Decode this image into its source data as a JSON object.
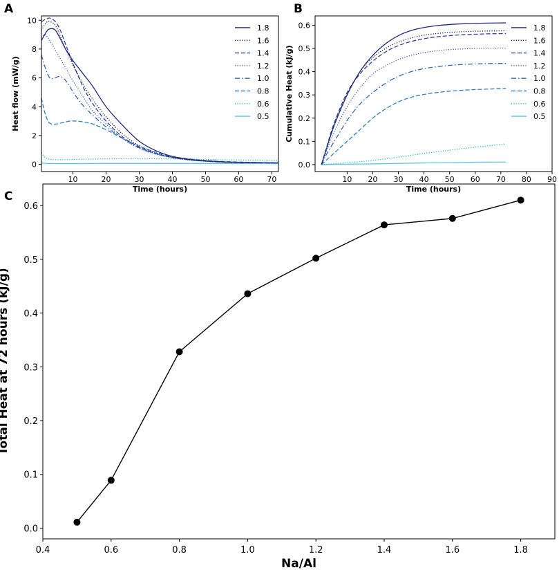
{
  "panel_labels": {
    "a": "A",
    "b": "B",
    "c": "C"
  },
  "chart_data": [
    {
      "panel": "A",
      "type": "line",
      "xlabel": "Time (hours)",
      "ylabel": "Heat flow (mW/g)",
      "xlim": [
        0.5,
        72
      ],
      "ylim": [
        -0.5,
        10.3
      ],
      "xticks": [
        10,
        20,
        30,
        40,
        50,
        60,
        70
      ],
      "yticks": [
        0,
        2,
        4,
        6,
        8,
        10
      ],
      "legend_position": "top-right",
      "series": [
        {
          "name": "1.8",
          "color": "#1f2a7a",
          "dash": "solid",
          "x": [
            0.5,
            2,
            3,
            4.5,
            6,
            8,
            10,
            13,
            16,
            20,
            25,
            30,
            35,
            40,
            45,
            50,
            55,
            60,
            65,
            72
          ],
          "y": [
            8.6,
            9.2,
            9.4,
            9.35,
            8.8,
            7.9,
            7.2,
            6.3,
            5.4,
            4.0,
            2.7,
            1.6,
            0.95,
            0.55,
            0.35,
            0.25,
            0.18,
            0.14,
            0.12,
            0.1
          ]
        },
        {
          "name": "1.6",
          "color": "#141a3f",
          "dash": "dotted",
          "x": [
            0.5,
            2,
            3,
            4.5,
            6,
            8,
            10,
            13,
            16,
            20,
            25,
            30,
            35,
            40,
            45,
            50,
            55,
            60,
            65,
            72
          ],
          "y": [
            9.3,
            9.85,
            9.9,
            9.7,
            9.0,
            7.9,
            6.9,
            5.6,
            4.5,
            3.3,
            2.1,
            1.3,
            0.8,
            0.5,
            0.32,
            0.22,
            0.16,
            0.13,
            0.11,
            0.1
          ]
        },
        {
          "name": "1.4",
          "color": "#2e3f9e",
          "dash": "dashed",
          "x": [
            0.5,
            2,
            3,
            4.5,
            6,
            8,
            10,
            13,
            16,
            20,
            25,
            30,
            35,
            40,
            45,
            50,
            55,
            60,
            65,
            72
          ],
          "y": [
            9.9,
            10.1,
            10.15,
            9.95,
            9.4,
            8.2,
            7.0,
            5.4,
            4.2,
            3.0,
            1.9,
            1.2,
            0.75,
            0.48,
            0.32,
            0.22,
            0.16,
            0.13,
            0.11,
            0.1
          ]
        },
        {
          "name": "1.2",
          "color": "#3a55b5",
          "dash": "dotted",
          "x": [
            0.5,
            1.5,
            3,
            4.5,
            6,
            8,
            10,
            13,
            16,
            20,
            25,
            30,
            35,
            40,
            45,
            50,
            55,
            60,
            65,
            72
          ],
          "y": [
            8.8,
            9.0,
            8.6,
            8.0,
            7.4,
            6.6,
            5.8,
            4.7,
            3.7,
            2.8,
            1.8,
            1.1,
            0.7,
            0.45,
            0.3,
            0.22,
            0.16,
            0.13,
            0.11,
            0.1
          ]
        },
        {
          "name": "1.0",
          "color": "#3068b0",
          "dash": "dashdot",
          "x": [
            0.5,
            1.5,
            3,
            4.5,
            6,
            7.5,
            9,
            11,
            13,
            16,
            20,
            25,
            30,
            35,
            40,
            45,
            50,
            55,
            60,
            65,
            72
          ],
          "y": [
            7.6,
            6.8,
            6.0,
            6.0,
            6.1,
            5.9,
            5.4,
            4.7,
            4.1,
            3.4,
            2.6,
            1.8,
            1.15,
            0.75,
            0.48,
            0.32,
            0.23,
            0.17,
            0.14,
            0.12,
            0.1
          ]
        },
        {
          "name": "0.8",
          "color": "#2b80c0",
          "dash": "dashed",
          "x": [
            0.5,
            1.5,
            2.5,
            3.5,
            5,
            7,
            9,
            11,
            13,
            16,
            20,
            25,
            30,
            35,
            40,
            45,
            50,
            55,
            60,
            65,
            72
          ],
          "y": [
            4.6,
            3.6,
            3.0,
            2.8,
            2.8,
            2.9,
            3.0,
            3.0,
            2.95,
            2.8,
            2.4,
            1.8,
            1.25,
            0.85,
            0.55,
            0.38,
            0.27,
            0.2,
            0.16,
            0.13,
            0.1
          ]
        },
        {
          "name": "0.6",
          "color": "#1fb3d8",
          "dash": "dotted",
          "x": [
            0.5,
            1.5,
            3,
            5,
            8,
            12,
            20,
            30,
            40,
            50,
            60,
            72
          ],
          "y": [
            0.8,
            0.5,
            0.35,
            0.32,
            0.33,
            0.35,
            0.38,
            0.4,
            0.38,
            0.34,
            0.3,
            0.26
          ]
        },
        {
          "name": "0.5",
          "color": "#5cc3e6",
          "dash": "solid",
          "x": [
            0.5,
            2,
            5,
            10,
            20,
            30,
            40,
            50,
            60,
            72
          ],
          "y": [
            0.1,
            0.06,
            0.05,
            0.05,
            0.06,
            0.06,
            0.06,
            0.06,
            0.06,
            0.05
          ]
        }
      ]
    },
    {
      "panel": "B",
      "type": "line",
      "xlabel": "Time (hours)",
      "ylabel": "Cumulative Heat (kJ/g)",
      "xlim": [
        -2.5,
        90
      ],
      "ylim": [
        -0.03,
        0.64
      ],
      "xticks": [
        10,
        20,
        30,
        40,
        50,
        60,
        70,
        80,
        90
      ],
      "yticks": [
        0.0,
        0.1,
        0.2,
        0.3,
        0.4,
        0.5,
        0.6
      ],
      "legend_position": "right",
      "series": [
        {
          "name": "1.8",
          "color": "#1f2a7a",
          "dash": "solid",
          "x": [
            0,
            2,
            5,
            10,
            15,
            20,
            25,
            30,
            35,
            40,
            45,
            50,
            55,
            60,
            65,
            72
          ],
          "y": [
            0.0,
            0.07,
            0.17,
            0.3,
            0.4,
            0.47,
            0.52,
            0.555,
            0.577,
            0.59,
            0.598,
            0.603,
            0.606,
            0.608,
            0.609,
            0.61
          ]
        },
        {
          "name": "1.6",
          "color": "#141a3f",
          "dash": "dotted",
          "x": [
            0,
            2,
            5,
            10,
            15,
            20,
            25,
            30,
            35,
            40,
            45,
            50,
            55,
            60,
            65,
            72
          ],
          "y": [
            0.0,
            0.07,
            0.17,
            0.3,
            0.4,
            0.46,
            0.5,
            0.527,
            0.545,
            0.557,
            0.564,
            0.569,
            0.572,
            0.574,
            0.575,
            0.576
          ]
        },
        {
          "name": "1.4",
          "color": "#2e3f9e",
          "dash": "dashed",
          "x": [
            0,
            2,
            5,
            10,
            15,
            20,
            25,
            30,
            35,
            40,
            45,
            50,
            55,
            60,
            65,
            72
          ],
          "y": [
            0.0,
            0.075,
            0.18,
            0.31,
            0.39,
            0.445,
            0.485,
            0.512,
            0.53,
            0.542,
            0.55,
            0.555,
            0.559,
            0.561,
            0.563,
            0.564
          ]
        },
        {
          "name": "1.2",
          "color": "#3a55b5",
          "dash": "dotted",
          "x": [
            0,
            2,
            5,
            10,
            15,
            20,
            25,
            30,
            35,
            40,
            45,
            50,
            55,
            60,
            65,
            72
          ],
          "y": [
            0.0,
            0.06,
            0.14,
            0.25,
            0.33,
            0.39,
            0.425,
            0.452,
            0.47,
            0.482,
            0.49,
            0.495,
            0.498,
            0.5,
            0.501,
            0.502
          ]
        },
        {
          "name": "1.0",
          "color": "#3068b0",
          "dash": "dashdot",
          "x": [
            0,
            2,
            5,
            10,
            15,
            20,
            25,
            30,
            35,
            40,
            45,
            50,
            55,
            60,
            65,
            72
          ],
          "y": [
            0.0,
            0.045,
            0.1,
            0.19,
            0.26,
            0.31,
            0.35,
            0.38,
            0.4,
            0.413,
            0.421,
            0.427,
            0.431,
            0.433,
            0.435,
            0.436
          ]
        },
        {
          "name": "0.8",
          "color": "#2b80c0",
          "dash": "dashed",
          "x": [
            0,
            2,
            5,
            10,
            15,
            20,
            25,
            30,
            35,
            40,
            45,
            50,
            55,
            60,
            65,
            72
          ],
          "y": [
            0.0,
            0.02,
            0.05,
            0.1,
            0.15,
            0.2,
            0.24,
            0.27,
            0.29,
            0.302,
            0.31,
            0.316,
            0.32,
            0.323,
            0.325,
            0.328
          ]
        },
        {
          "name": "0.6",
          "color": "#1fb3d8",
          "dash": "dotted",
          "x": [
            0,
            10,
            20,
            30,
            40,
            50,
            60,
            72
          ],
          "y": [
            0.0,
            0.008,
            0.018,
            0.032,
            0.048,
            0.062,
            0.075,
            0.089
          ]
        },
        {
          "name": "0.5",
          "color": "#5cc3e6",
          "dash": "solid",
          "x": [
            0,
            10,
            20,
            30,
            40,
            50,
            60,
            72
          ],
          "y": [
            0.0,
            0.002,
            0.003,
            0.005,
            0.007,
            0.008,
            0.01,
            0.011
          ]
        }
      ]
    },
    {
      "panel": "C",
      "type": "scatter",
      "xlabel": "Na/Al",
      "ylabel": "Total Heat at 72 hours (kJ/g)",
      "xlim": [
        0.4,
        1.9
      ],
      "ylim": [
        -0.02,
        0.64
      ],
      "xticks": [
        0.4,
        0.6,
        0.8,
        1.0,
        1.2,
        1.4,
        1.6,
        1.8
      ],
      "yticks": [
        0.0,
        0.1,
        0.2,
        0.3,
        0.4,
        0.5,
        0.6
      ],
      "x": [
        0.5,
        0.6,
        0.8,
        1.0,
        1.2,
        1.4,
        1.6,
        1.8
      ],
      "y": [
        0.011,
        0.089,
        0.328,
        0.436,
        0.502,
        0.564,
        0.576,
        0.61
      ],
      "line_color": "#000000",
      "marker_color": "#000000"
    }
  ]
}
